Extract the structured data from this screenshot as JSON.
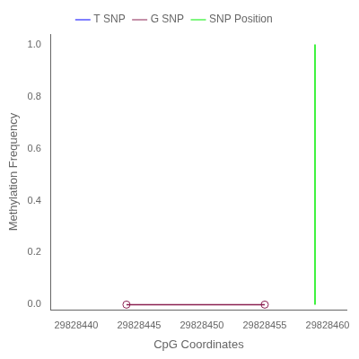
{
  "chart_data": {
    "type": "line",
    "xlabel": "CpG Coordinates",
    "ylabel": "Methylation Frequency",
    "series": [
      {
        "name": "T SNP",
        "color": "#0000ff",
        "x": [],
        "values": []
      },
      {
        "name": "G SNP",
        "color": "#8b2252",
        "marker": "circle",
        "x": [
          29828444,
          29828455
        ],
        "values": [
          0.0,
          0.0
        ]
      },
      {
        "name": "SNP Position",
        "color": "#00ee00",
        "x": [
          29828459,
          29828459
        ],
        "values": [
          0,
          1
        ]
      }
    ],
    "xlim": [
      29828438,
      29828461.5
    ],
    "xticks": [
      29828440,
      29828445,
      29828450,
      29828455,
      29828460
    ],
    "ylim": [
      -0.02,
      1.04
    ],
    "yticks": [
      {
        "value": 0,
        "label": "0.0"
      },
      0.2,
      0.4,
      0.6,
      0.8,
      {
        "value": 1,
        "label": "1.0"
      }
    ],
    "grid": false,
    "legend": "top"
  }
}
